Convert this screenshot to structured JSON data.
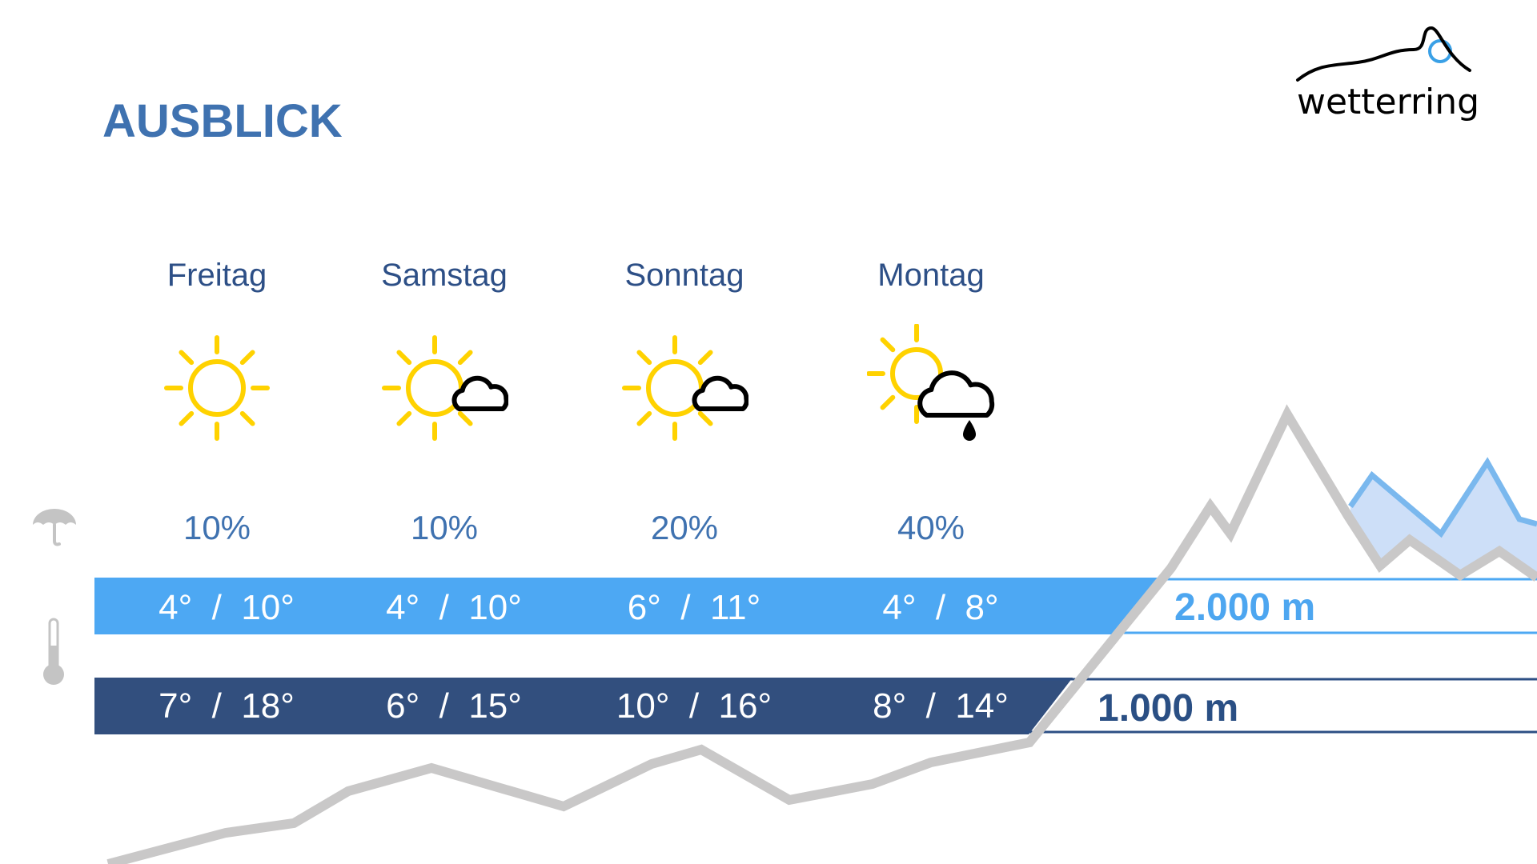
{
  "title": "AUSBLICK",
  "logo": {
    "text": "wetterring",
    "accent": "#3aa0e6"
  },
  "days": [
    {
      "name": "Freitag",
      "icon": "sun-icon",
      "rain": "10%",
      "temp_2000": "4°  /  10°",
      "temp_1000": "7°  /  18°"
    },
    {
      "name": "Samstag",
      "icon": "sun-cloud-icon",
      "rain": "10%",
      "temp_2000": "4°  /  10°",
      "temp_1000": "6°  /  15°"
    },
    {
      "name": "Sonntag",
      "icon": "sun-cloud-icon",
      "rain": "20%",
      "temp_2000": "6°  /  11°",
      "temp_1000": "10°  /  16°"
    },
    {
      "name": "Montag",
      "icon": "sun-cloud-rain-icon",
      "rain": "40%",
      "temp_2000": "4°  /  8°",
      "temp_1000": "8°  /  14°"
    }
  ],
  "levels": {
    "high": "2.000 m",
    "low": "1.000 m"
  },
  "colors": {
    "title": "#3f72b0",
    "day": "#2d4f86",
    "bar_high": "#4da8f3",
    "bar_low": "#324f7e",
    "sun": "#ffd200",
    "mountain": "#c9c8c8",
    "snow_fill": "#cddff8"
  }
}
